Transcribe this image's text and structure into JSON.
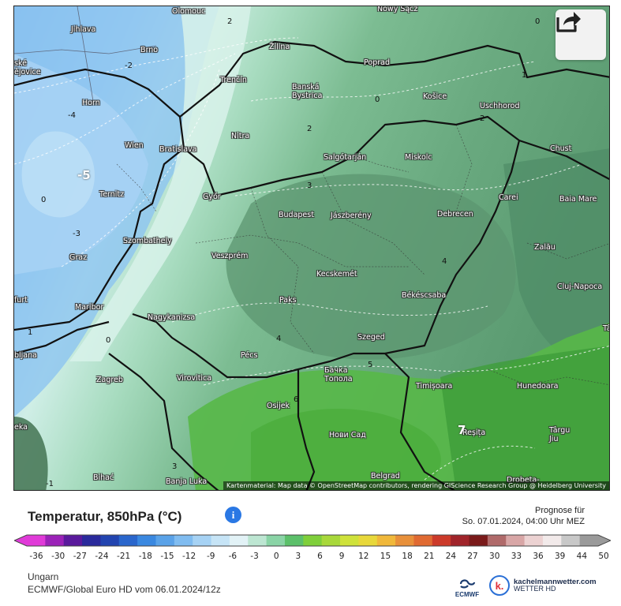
{
  "map": {
    "attribution": "Kartenmaterial: Map data © OpenStreetMap contributors, rendering GIScience Research Group @ Heidelberg University",
    "cities": [
      {
        "name": "Olomouc"
      },
      {
        "name": "Nowy Sącz"
      },
      {
        "name": "Jihlava"
      },
      {
        "name": "Brno"
      },
      {
        "name": "Žilina"
      },
      {
        "name": "Poprad"
      },
      {
        "name": "ské\nějovice"
      },
      {
        "name": "Trenčín"
      },
      {
        "name": "Banská\nBystrica"
      },
      {
        "name": "Košice"
      },
      {
        "name": "Uschhorod"
      },
      {
        "name": "Horn"
      },
      {
        "name": "Nitra"
      },
      {
        "name": "Wien"
      },
      {
        "name": "Bratislava"
      },
      {
        "name": "Salgótarján"
      },
      {
        "name": "Miskolc"
      },
      {
        "name": "Chust"
      },
      {
        "name": "Ternitz"
      },
      {
        "name": "Győr"
      },
      {
        "name": "Budapest"
      },
      {
        "name": "Jászberény"
      },
      {
        "name": "Debrecen"
      },
      {
        "name": "Carei"
      },
      {
        "name": "Baia Mare"
      },
      {
        "name": "Szombathely"
      },
      {
        "name": "Graz"
      },
      {
        "name": "Veszprém"
      },
      {
        "name": "Zalău"
      },
      {
        "name": "Kecskemét"
      },
      {
        "name": "Cluj-Napoca"
      },
      {
        "name": "Paks"
      },
      {
        "name": "Békéscsaba"
      },
      {
        "name": "Maribor"
      },
      {
        "name": "Nagykanizsa"
      },
      {
        "name": "Szeged"
      },
      {
        "name": "Pécs"
      },
      {
        "name": "Бачка\nТопола"
      },
      {
        "name": "Zagreb"
      },
      {
        "name": "Virovitica"
      },
      {
        "name": "Timișoara"
      },
      {
        "name": "Hunedoara"
      },
      {
        "name": "Osijek"
      },
      {
        "name": "Нови Сад"
      },
      {
        "name": "Reșița"
      },
      {
        "name": "Târgu\nJiu"
      },
      {
        "name": "Bihać"
      },
      {
        "name": "Banja Luka"
      },
      {
        "name": "Belgrad"
      },
      {
        "name": "Drobeta-"
      },
      {
        "name": "furt"
      },
      {
        "name": "bljana"
      },
      {
        "name": "eka"
      },
      {
        "name": "Tâ"
      }
    ],
    "isotherm_labels": [
      "0",
      "-2",
      "0",
      "2",
      "0",
      "1",
      "2",
      "-4",
      "2",
      "-5",
      "3",
      "-3",
      "4",
      "0",
      "4",
      "5",
      "6",
      "7",
      "1",
      "3",
      "-1"
    ]
  },
  "legend": {
    "title": "Temperatur, 850hPa (°C)",
    "info_icon": "info-icon",
    "forecast_label": "Prognose für",
    "forecast_time": "So. 07.01.2024, 04:00 Uhr MEZ",
    "ticks": [
      "-36",
      "-30",
      "-27",
      "-24",
      "-21",
      "-18",
      "-15",
      "-12",
      "-9",
      "-6",
      "-3",
      "0",
      "3",
      "6",
      "9",
      "12",
      "15",
      "18",
      "21",
      "24",
      "27",
      "30",
      "33",
      "36",
      "39",
      "44",
      "50"
    ],
    "colors": [
      "#e03ad8",
      "#9b22b8",
      "#5a1a9c",
      "#2a2a9c",
      "#2244b0",
      "#2a66cc",
      "#3a88e0",
      "#5aa2e8",
      "#80bcf0",
      "#a6d2f4",
      "#c6e4f6",
      "#e2f2f6",
      "#bde6d2",
      "#8ad4a6",
      "#5cc06a",
      "#7fcf3a",
      "#a8d83a",
      "#cfe23a",
      "#e8d83a",
      "#f0b83a",
      "#e8903a",
      "#e06a32",
      "#cc3a2a",
      "#a0242a",
      "#7a1a1a",
      "#b06a6a",
      "#d8a6a6",
      "#ecd2d2",
      "#f2eaea",
      "#c8c8c8",
      "#9a9a9a"
    ]
  },
  "footer": {
    "region": "Ungarn",
    "model": "ECMWF/Global Euro HD vom 06.01.2024/12z",
    "ecmwf_label": "ECMWF",
    "brand_name": "kachelmannwetter.com",
    "brand_sub": "WETTER HD",
    "brand_letter": "k."
  }
}
